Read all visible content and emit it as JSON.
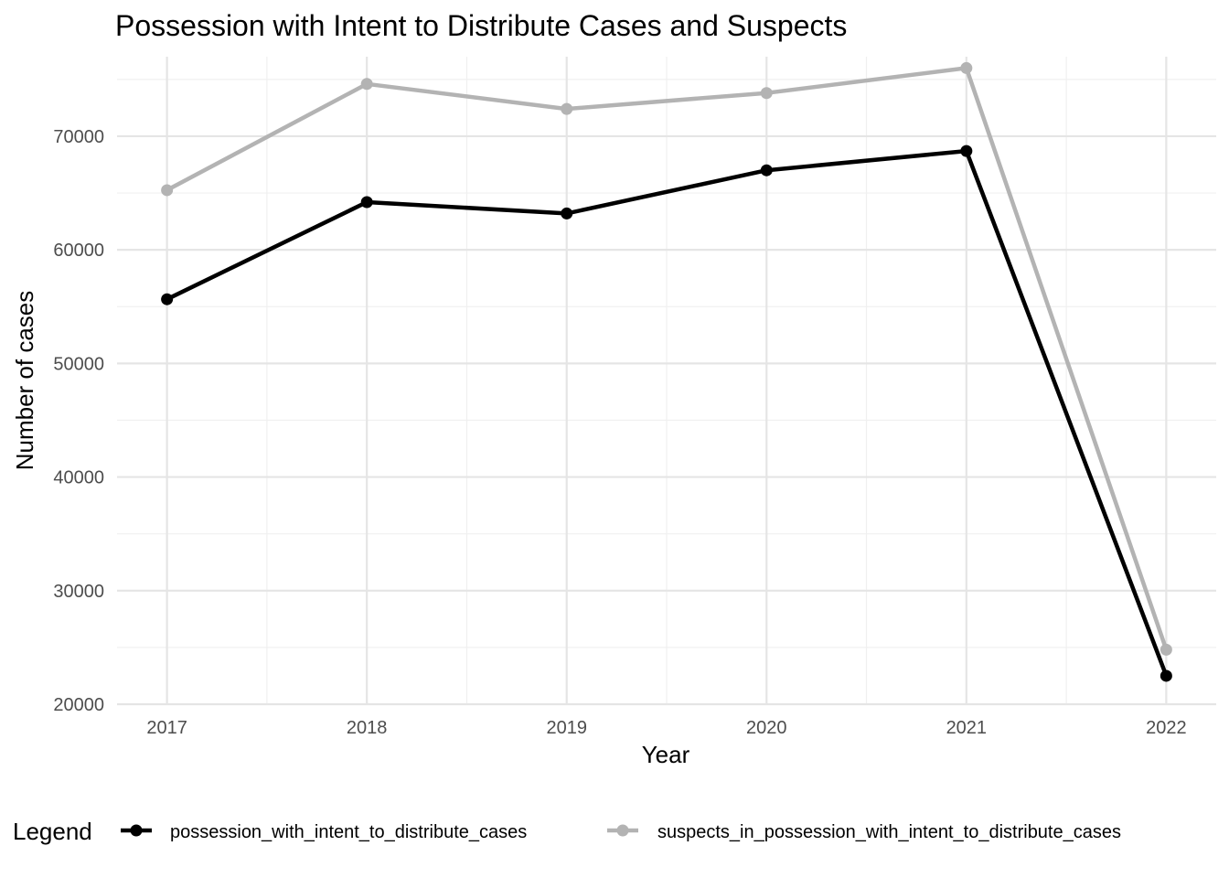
{
  "chart_data": {
    "type": "line",
    "title": "Possession with Intent to Distribute Cases and Suspects",
    "xlabel": "Year",
    "ylabel": "Number of cases",
    "categories": [
      "2017",
      "2018",
      "2019",
      "2020",
      "2021",
      "2022"
    ],
    "x": [
      2017,
      2018,
      2019,
      2020,
      2021,
      2022
    ],
    "yticks": [
      "20000",
      "30000",
      "40000",
      "50000",
      "60000",
      "70000"
    ],
    "ytick_values": [
      20000,
      30000,
      40000,
      50000,
      60000,
      70000
    ],
    "ylim": [
      20000,
      77000
    ],
    "grid": true,
    "legend": {
      "title": "Legend",
      "position": "bottom"
    },
    "series": [
      {
        "name": "possession_with_intent_to_distribute_cases",
        "color": "#000000",
        "values": [
          55650,
          64200,
          63200,
          67000,
          68700,
          22500
        ]
      },
      {
        "name": "suspects_in_possession_with_intent_to_distribute_cases",
        "color": "#b3b3b3",
        "values": [
          65250,
          74600,
          72400,
          73800,
          76000,
          24800
        ]
      }
    ]
  }
}
